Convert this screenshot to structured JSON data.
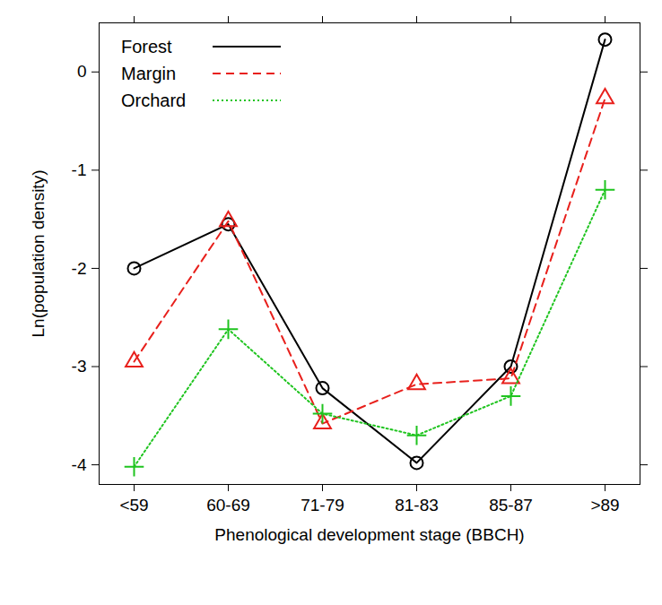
{
  "chart_data": {
    "type": "line",
    "x_label": "Phenological development stage (BBCH)",
    "y_label": "Ln(population density)",
    "categories": [
      "<59",
      "60-69",
      "71-79",
      "81-83",
      "85-87",
      ">89"
    ],
    "ylim": [
      -4.2,
      0.5
    ],
    "yticks": [
      -4,
      -3,
      -2,
      -1,
      0
    ],
    "legend": "top-left",
    "series": [
      {
        "name": "Forest",
        "color": "#000000",
        "marker": "circle",
        "line_style": "solid",
        "values": [
          -2.0,
          -1.55,
          -3.22,
          -3.98,
          -3.0,
          0.33
        ]
      },
      {
        "name": "Margin",
        "color": "#e8201c",
        "marker": "triangle",
        "line_style": "dashed",
        "values": [
          -2.95,
          -1.52,
          -3.58,
          -3.18,
          -3.12,
          -0.27
        ]
      },
      {
        "name": "Orchard",
        "color": "#1fc41f",
        "marker": "plus",
        "line_style": "dotted",
        "values": [
          -4.02,
          -2.62,
          -3.48,
          -3.7,
          -3.3,
          -1.2
        ]
      }
    ]
  }
}
